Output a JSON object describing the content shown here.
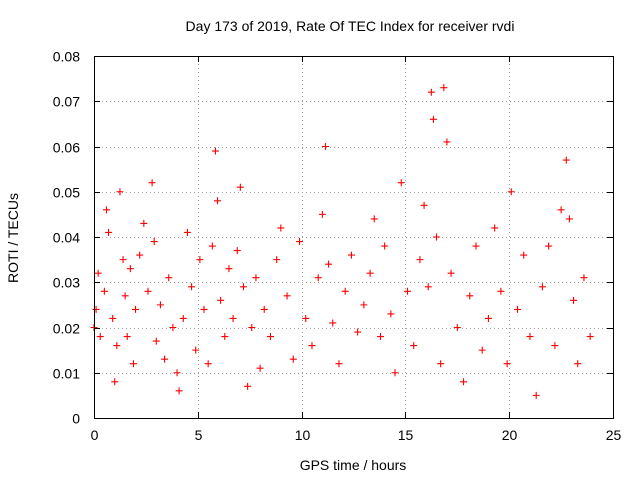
{
  "chart_data": {
    "type": "scatter",
    "title": "Day 173 of 2019, Rate Of TEC Index for receiver rvdi",
    "xlabel": "GPS time / hours",
    "ylabel": "ROTI / TECUs",
    "xlim": [
      0,
      25
    ],
    "ylim": [
      0,
      0.08
    ],
    "x_ticks": [
      0,
      5,
      10,
      15,
      20,
      25
    ],
    "x_tick_labels": [
      "0",
      "5",
      "10",
      "15",
      "20",
      "25"
    ],
    "y_ticks": [
      0,
      0.01,
      0.02,
      0.03,
      0.04,
      0.05,
      0.06,
      0.07,
      0.08
    ],
    "y_tick_labels": [
      "0",
      "0.01",
      "0.02",
      "0.03",
      "0.04",
      "0.05",
      "0.06",
      "0.07",
      "0.08"
    ],
    "grid": true,
    "marker": "plus",
    "marker_color": "#ff0000",
    "series": [
      {
        "name": "ROTI",
        "x": [
          0.0,
          0.1,
          0.2,
          0.3,
          0.5,
          0.6,
          0.7,
          0.9,
          1.0,
          1.1,
          1.25,
          1.4,
          1.5,
          1.6,
          1.75,
          1.9,
          2.0,
          2.2,
          2.4,
          2.6,
          2.8,
          2.9,
          3.0,
          3.2,
          3.4,
          3.6,
          3.8,
          4.0,
          4.1,
          4.3,
          4.5,
          4.7,
          4.9,
          5.1,
          5.3,
          5.5,
          5.7,
          5.85,
          5.95,
          6.1,
          6.3,
          6.5,
          6.7,
          6.9,
          7.05,
          7.2,
          7.4,
          7.6,
          7.8,
          8.0,
          8.2,
          8.5,
          8.8,
          9.0,
          9.3,
          9.6,
          9.9,
          10.2,
          10.5,
          10.8,
          11.0,
          11.15,
          11.3,
          11.5,
          11.8,
          12.1,
          12.4,
          12.7,
          13.0,
          13.3,
          13.5,
          13.8,
          14.0,
          14.3,
          14.5,
          14.8,
          15.1,
          15.4,
          15.7,
          15.9,
          16.1,
          16.25,
          16.35,
          16.5,
          16.7,
          16.85,
          17.0,
          17.2,
          17.5,
          17.8,
          18.1,
          18.4,
          18.7,
          19.0,
          19.3,
          19.6,
          19.9,
          20.1,
          20.4,
          20.7,
          21.0,
          21.3,
          21.6,
          21.9,
          22.2,
          22.5,
          22.75,
          22.9,
          23.1,
          23.3,
          23.6,
          23.9
        ],
        "y": [
          0.02,
          0.024,
          0.032,
          0.018,
          0.028,
          0.046,
          0.041,
          0.022,
          0.008,
          0.016,
          0.05,
          0.035,
          0.027,
          0.018,
          0.033,
          0.012,
          0.024,
          0.036,
          0.043,
          0.028,
          0.052,
          0.039,
          0.017,
          0.025,
          0.013,
          0.031,
          0.02,
          0.01,
          0.006,
          0.022,
          0.041,
          0.029,
          0.015,
          0.035,
          0.024,
          0.012,
          0.038,
          0.059,
          0.048,
          0.026,
          0.018,
          0.033,
          0.022,
          0.037,
          0.051,
          0.029,
          0.007,
          0.02,
          0.031,
          0.011,
          0.024,
          0.018,
          0.035,
          0.042,
          0.027,
          0.013,
          0.039,
          0.022,
          0.016,
          0.031,
          0.045,
          0.06,
          0.034,
          0.021,
          0.012,
          0.028,
          0.036,
          0.019,
          0.025,
          0.032,
          0.044,
          0.018,
          0.038,
          0.023,
          0.01,
          0.052,
          0.028,
          0.016,
          0.035,
          0.047,
          0.029,
          0.072,
          0.066,
          0.04,
          0.012,
          0.073,
          0.061,
          0.032,
          0.02,
          0.008,
          0.027,
          0.038,
          0.015,
          0.022,
          0.042,
          0.028,
          0.012,
          0.05,
          0.024,
          0.036,
          0.018,
          0.005,
          0.029,
          0.038,
          0.016,
          0.046,
          0.057,
          0.044,
          0.026,
          0.012,
          0.031,
          0.018
        ]
      }
    ]
  }
}
